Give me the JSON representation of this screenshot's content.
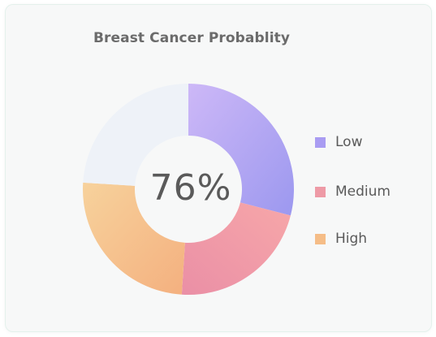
{
  "chart_data": {
    "type": "pie",
    "title": "Breast Cancer Probablity",
    "center_label": "76%",
    "donut": true,
    "slices": [
      {
        "name": "Low",
        "value": 29,
        "color_start": "#cdb8f7",
        "color_end": "#9c98ef"
      },
      {
        "name": "Medium",
        "value": 22,
        "color_start": "#f7a7a9",
        "color_end": "#ea8fa6"
      },
      {
        "name": "High",
        "value": 25,
        "color_start": "#f7d29c",
        "color_end": "#f4b07f"
      },
      {
        "name": "",
        "value": 24,
        "color_start": "#eef2f8",
        "color_end": "#eef2f8"
      }
    ],
    "legend": {
      "position": "right",
      "items": [
        {
          "label": "Low",
          "color": "#a99cf2"
        },
        {
          "label": "Medium",
          "color": "#ee9aa6"
        },
        {
          "label": "High",
          "color": "#f5bd87"
        }
      ]
    }
  }
}
